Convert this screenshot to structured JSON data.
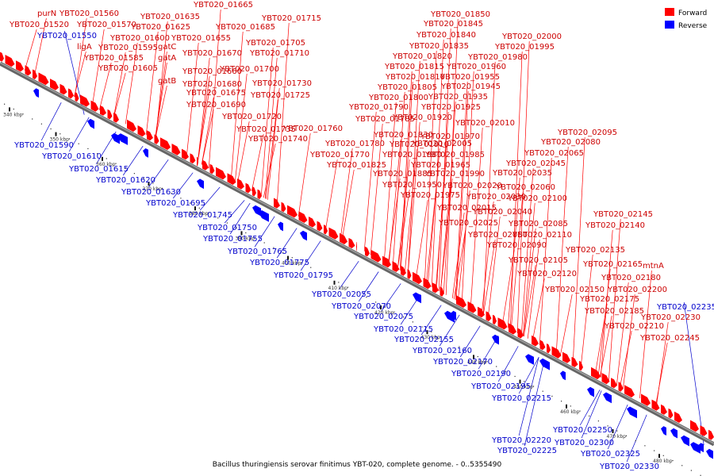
{
  "legend": {
    "items": [
      {
        "label": "Forward",
        "color": "#ff0000"
      },
      {
        "label": "Reverse",
        "color": "#0000ff"
      }
    ]
  },
  "caption": "Bacillus thuringiensis serovar finitimus YBT-020, complete genome. - 0..5355490",
  "colors": {
    "forward": "#ff0000",
    "reverse": "#0000ff",
    "backbone": "#666666",
    "tick": "#111111"
  },
  "tick_labels": [
    "340 kbp",
    "350 kbp",
    "360 kbp",
    "370 kbp",
    "380 kbp",
    "390 kbp",
    "400 kbp",
    "410 kbp",
    "420 kbp",
    "430 kbp",
    "440 kbp",
    "450 kbp",
    "460 kbp",
    "470 kbp",
    "480 kbp"
  ],
  "forward_labels": [
    "purN",
    "YBT020_01520",
    "YBT020_01560",
    "YBT020_01570",
    "ligA",
    "YBT020_01595",
    "YBT020_01585",
    "YBT020_01605",
    "YBT020_01600",
    "YBT020_01625",
    "YBT020_01635",
    "gatC",
    "gatA",
    "gatB",
    "YBT020_01655",
    "YBT020_01665",
    "YBT020_01670",
    "YBT020_01660",
    "YBT020_01680",
    "YBT020_01675",
    "YBT020_01690",
    "YBT020_01685",
    "YBT020_01705",
    "YBT020_01710",
    "YBT020_01700",
    "YBT020_01715",
    "YBT020_01730",
    "YBT020_01725",
    "YBT020_01720",
    "YBT020_01735",
    "YBT020_01740",
    "YBT020_01760",
    "YBT020_01780",
    "YBT020_01770",
    "YBT020_01790",
    "YBT020_01785",
    "YBT020_01800",
    "YBT020_01805",
    "YBT020_01810",
    "YBT020_01815",
    "YBT020_01820",
    "YBT020_01835",
    "YBT020_01840",
    "YBT020_01845",
    "YBT020_01850",
    "YBT020_01830",
    "YBT020_01825",
    "YBT020_01880",
    "YBT020_01885",
    "YBT020_01910",
    "YBT020_01920",
    "YBT020_01925",
    "YBT020_01935",
    "YBT020_01945",
    "YBT020_01955",
    "YBT020_01960",
    "YBT020_01980",
    "YBT020_01995",
    "YBT020_02000",
    "YBT020_01970",
    "YBT020_01965",
    "YBT020_01985",
    "YBT020_01990",
    "YBT020_01950",
    "YBT020_01975",
    "YBT020_02005",
    "YBT020_02010",
    "YBT020_02020",
    "YBT020_02015",
    "YBT020_02030",
    "YBT020_02025",
    "YBT020_02040",
    "YBT020_02050",
    "YBT020_02035",
    "YBT020_02045",
    "YBT020_02060",
    "YBT020_02065",
    "YBT020_02080",
    "YBT020_02095",
    "YBT020_02100",
    "YBT020_02085",
    "YBT020_02090",
    "YBT020_02110",
    "YBT020_02105",
    "YBT020_02120",
    "YBT020_02135",
    "YBT020_02140",
    "YBT020_02145",
    "YBT020_02150",
    "YBT020_02165",
    "mtnA",
    "YBT020_02180",
    "YBT020_02175",
    "YBT020_02200",
    "YBT020_02185",
    "YBT020_02230",
    "YBT020_02210",
    "YBT020_02245"
  ],
  "reverse_labels": [
    "YBT020_01550",
    "YBT020_01590",
    "YBT020_01610",
    "YBT020_01615",
    "YBT020_01620",
    "YBT020_01630",
    "YBT020_01695",
    "YBT020_01745",
    "YBT020_01750",
    "YBT020_01755",
    "YBT020_01765",
    "YBT020_01775",
    "YBT020_01795",
    "YBT020_02055",
    "YBT020_02070",
    "YBT020_02075",
    "YBT020_02115",
    "YBT020_02155",
    "YBT020_02160",
    "YBT020_02170",
    "YBT020_02190",
    "YBT020_02195",
    "YBT020_02215",
    "YBT020_02235",
    "YBT020_02250",
    "YBT020_02220",
    "YBT020_02225",
    "YBT020_02300",
    "YBT020_02325",
    "YBT020_02330"
  ]
}
